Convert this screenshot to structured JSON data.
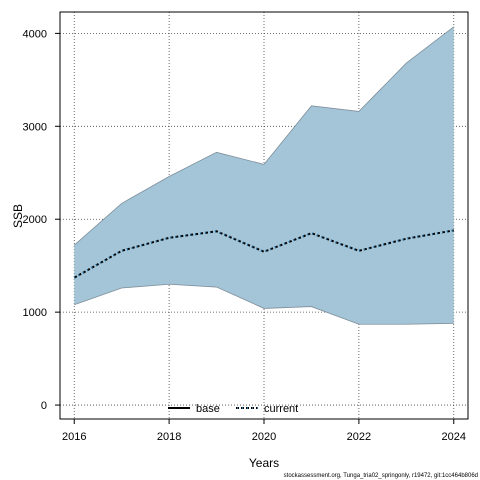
{
  "chart_data": {
    "type": "area",
    "xlabel": "Years",
    "ylabel": "SSB",
    "xlim": [
      2015.7,
      2024.3
    ],
    "ylim": [
      -150,
      4230
    ],
    "x_ticks": [
      "2016",
      "2018",
      "2020",
      "2022",
      "2024"
    ],
    "y_ticks": [
      "0",
      "1000",
      "2000",
      "3000",
      "4000"
    ],
    "grid": true,
    "legend_position": "bottom-center",
    "band": {
      "x": [
        2016,
        2017,
        2018,
        2019,
        2020,
        2021,
        2022,
        2023,
        2024
      ],
      "upper": [
        1720,
        2170,
        2460,
        2720,
        2590,
        3220,
        3160,
        3680,
        4070
      ],
      "lower": [
        1080,
        1260,
        1300,
        1270,
        1040,
        1060,
        870,
        870,
        880
      ],
      "color": "#a4c5d7",
      "edge_color": "#7e8f9b"
    },
    "series": [
      {
        "name": "base",
        "style": "solid",
        "color": "#000000",
        "x": [],
        "values": []
      },
      {
        "name": "current",
        "style": "dashed",
        "color": "#000000",
        "dot_color": "#1f6ea0",
        "x": [
          2016,
          2017,
          2018,
          2019,
          2020,
          2021,
          2022,
          2023,
          2024
        ],
        "values": [
          1370,
          1660,
          1800,
          1870,
          1650,
          1850,
          1660,
          1790,
          1880
        ]
      }
    ]
  },
  "caption": "stockassessment.org, Tunga_tria02_springonly, r19472, git:1cc464b806d"
}
